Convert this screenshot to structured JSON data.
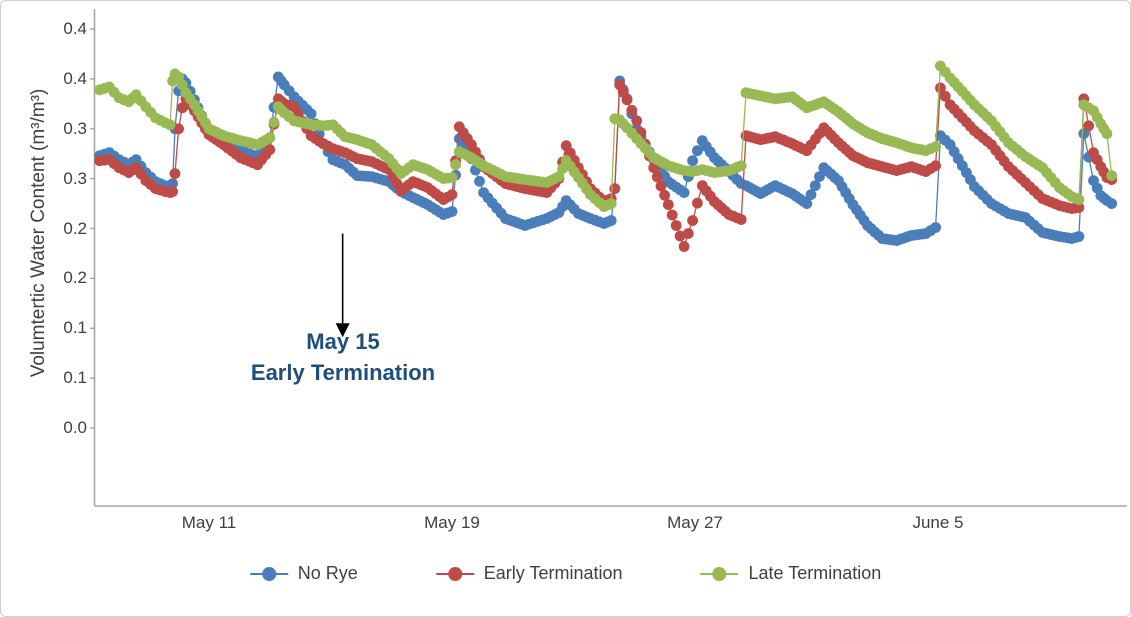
{
  "chart_data": {
    "type": "line",
    "title": "",
    "ylabel": "Volumtertic Water Content (m³/m³)",
    "x_unit": "tick index (0 = May 11, 1 = May 19, 2 = May 27, 3 = June 5; one tick interval ≈ 8 days)",
    "xlim": [
      -0.5,
      3.8
    ],
    "ylim": [
      -0.078,
      0.418
    ],
    "grid": "off",
    "legend_position": "bottom-center",
    "x_ticks": [
      {
        "t": 0,
        "label": "May 11"
      },
      {
        "t": 1,
        "label": "May 19"
      },
      {
        "t": 2,
        "label": "May 27"
      },
      {
        "t": 3,
        "label": "June 5"
      }
    ],
    "y_ticks": [
      {
        "v": 0.4,
        "label": "0.4"
      },
      {
        "v": 0.35,
        "label": "0.4"
      },
      {
        "v": 0.3,
        "label": "0.3"
      },
      {
        "v": 0.25,
        "label": "0.3"
      },
      {
        "v": 0.2,
        "label": "0.2"
      },
      {
        "v": 0.15,
        "label": "0.2"
      },
      {
        "v": 0.1,
        "label": "0.1"
      },
      {
        "v": 0.05,
        "label": "0.1"
      },
      {
        "v": 0.0,
        "label": "0.0"
      }
    ],
    "x": [
      -0.45,
      -0.41,
      -0.37,
      -0.33,
      -0.3,
      -0.26,
      -0.22,
      -0.18,
      -0.16,
      -0.15,
      -0.14,
      -0.125,
      -0.11,
      -0.095,
      -0.06,
      0.0,
      0.06,
      0.13,
      0.2,
      0.25,
      0.285,
      0.31,
      0.35,
      0.42,
      0.47,
      0.51,
      0.56,
      0.61,
      0.67,
      0.74,
      0.79,
      0.84,
      0.9,
      0.965,
      1.0,
      1.03,
      1.08,
      1.13,
      1.22,
      1.3,
      1.39,
      1.44,
      1.47,
      1.52,
      1.57,
      1.625,
      1.655,
      1.67,
      1.69,
      1.72,
      1.76,
      1.83,
      1.89,
      1.955,
      1.99,
      2.03,
      2.08,
      2.14,
      2.19,
      2.21,
      2.27,
      2.33,
      2.4,
      2.46,
      2.53,
      2.59,
      2.65,
      2.71,
      2.77,
      2.83,
      2.89,
      2.95,
      2.99,
      3.01,
      3.05,
      3.15,
      3.22,
      3.29,
      3.36,
      3.43,
      3.5,
      3.55,
      3.58,
      3.6,
      3.64,
      3.67,
      3.695,
      3.715
    ],
    "series": [
      {
        "name": "No Rye",
        "color": "#4A7EBB",
        "values": [
          0.273,
          0.276,
          0.269,
          0.264,
          0.269,
          0.256,
          0.247,
          0.243,
          0.24,
          0.245,
          0.3,
          0.338,
          0.35,
          0.346,
          0.329,
          0.297,
          0.288,
          0.278,
          0.272,
          0.291,
          0.352,
          0.344,
          0.332,
          0.315,
          0.285,
          0.269,
          0.264,
          0.253,
          0.252,
          0.247,
          0.237,
          0.231,
          0.224,
          0.214,
          0.217,
          0.29,
          0.27,
          0.236,
          0.21,
          0.203,
          0.21,
          0.216,
          0.228,
          0.215,
          0.21,
          0.205,
          0.208,
          0.24,
          0.348,
          0.33,
          0.3,
          0.269,
          0.247,
          0.236,
          0.268,
          0.288,
          0.271,
          0.257,
          0.245,
          0.243,
          0.235,
          0.243,
          0.235,
          0.225,
          0.261,
          0.248,
          0.224,
          0.203,
          0.19,
          0.188,
          0.193,
          0.195,
          0.201,
          0.293,
          0.284,
          0.242,
          0.225,
          0.215,
          0.211,
          0.196,
          0.192,
          0.19,
          0.192,
          0.295,
          0.248,
          0.233,
          0.228,
          0.225
        ]
      },
      {
        "name": "Early Termination",
        "color": "#BE4B48",
        "values": [
          0.268,
          0.269,
          0.261,
          0.256,
          0.261,
          0.248,
          0.24,
          0.237,
          0.236,
          0.237,
          0.255,
          0.3,
          0.321,
          0.33,
          0.318,
          0.294,
          0.284,
          0.271,
          0.264,
          0.279,
          0.33,
          0.325,
          0.322,
          0.293,
          0.285,
          0.28,
          0.276,
          0.27,
          0.267,
          0.259,
          0.238,
          0.247,
          0.241,
          0.229,
          0.234,
          0.302,
          0.284,
          0.262,
          0.245,
          0.24,
          0.236,
          0.25,
          0.283,
          0.261,
          0.24,
          0.227,
          0.23,
          0.24,
          0.344,
          0.329,
          0.308,
          0.261,
          0.224,
          0.182,
          0.208,
          0.243,
          0.227,
          0.214,
          0.209,
          0.293,
          0.289,
          0.292,
          0.285,
          0.278,
          0.301,
          0.286,
          0.273,
          0.266,
          0.262,
          0.258,
          0.262,
          0.257,
          0.263,
          0.341,
          0.324,
          0.298,
          0.284,
          0.262,
          0.246,
          0.23,
          0.223,
          0.22,
          0.221,
          0.33,
          0.276,
          0.262,
          0.251,
          0.249
        ]
      },
      {
        "name": "Late Termination",
        "color": "#98B954",
        "values": [
          0.339,
          0.342,
          0.331,
          0.327,
          0.334,
          0.322,
          0.311,
          0.306,
          0.304,
          0.348,
          0.355,
          0.352,
          0.344,
          0.336,
          0.324,
          0.3,
          0.293,
          0.288,
          0.284,
          0.291,
          0.322,
          0.316,
          0.308,
          0.304,
          0.303,
          0.304,
          0.292,
          0.289,
          0.284,
          0.27,
          0.255,
          0.264,
          0.259,
          0.25,
          0.251,
          0.277,
          0.271,
          0.263,
          0.252,
          0.249,
          0.246,
          0.252,
          0.268,
          0.251,
          0.234,
          0.222,
          0.225,
          0.31,
          0.309,
          0.301,
          0.29,
          0.271,
          0.263,
          0.258,
          0.257,
          0.259,
          0.256,
          0.258,
          0.263,
          0.336,
          0.333,
          0.33,
          0.332,
          0.321,
          0.327,
          0.317,
          0.305,
          0.296,
          0.29,
          0.286,
          0.281,
          0.278,
          0.282,
          0.363,
          0.351,
          0.324,
          0.308,
          0.286,
          0.272,
          0.261,
          0.241,
          0.232,
          0.229,
          0.324,
          0.318,
          0.305,
          0.295,
          0.253
        ]
      }
    ],
    "annotation": {
      "line1": "May 15",
      "line2": "Early Termination",
      "color": "#1F4E79",
      "arrow_t": 0.55,
      "arrow_v_from": 0.195,
      "arrow_v_to": 0.117
    },
    "axis_color": "#A6A6A6"
  },
  "legend": {
    "items": [
      {
        "label": "No Rye",
        "color": "#4A7EBB"
      },
      {
        "label": "Early Termination",
        "color": "#BE4B48"
      },
      {
        "label": "Late Termination",
        "color": "#98B954"
      }
    ]
  }
}
